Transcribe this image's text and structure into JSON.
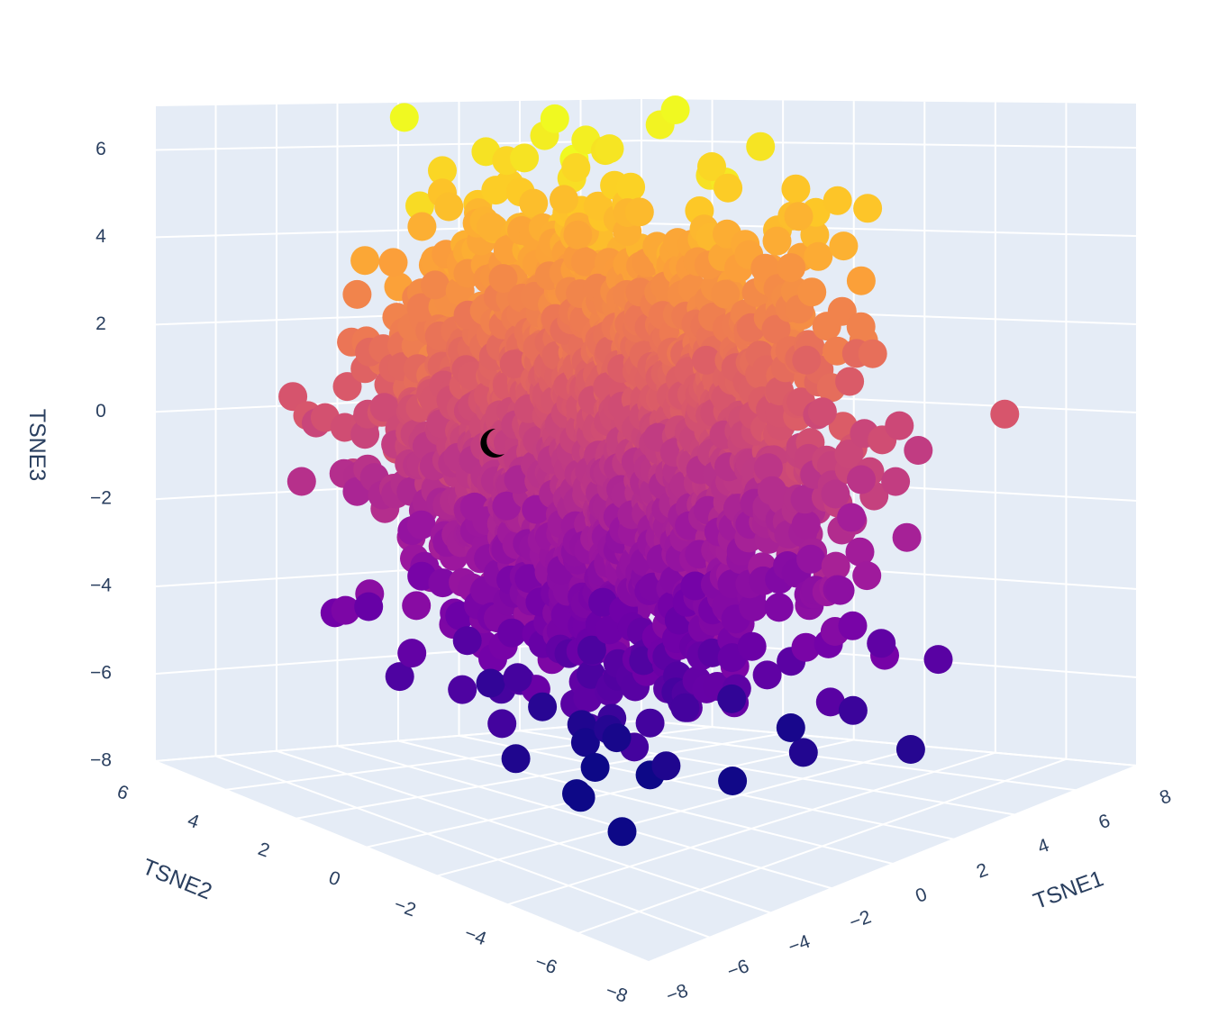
{
  "chart_data": {
    "type": "scatter3d",
    "title": "",
    "axes": {
      "x": {
        "label": "TSNE1",
        "range": [
          -8,
          8
        ],
        "ticks": [
          -8,
          -6,
          -4,
          -2,
          0,
          2,
          4,
          6,
          8
        ]
      },
      "y": {
        "label": "TSNE2",
        "range": [
          -8,
          6
        ],
        "ticks": [
          -8,
          -6,
          -4,
          -2,
          0,
          2,
          4,
          6
        ]
      },
      "z": {
        "label": "TSNE3",
        "range": [
          -8,
          7
        ],
        "ticks": [
          -8,
          -6,
          -4,
          -2,
          0,
          2,
          4,
          6
        ]
      }
    },
    "colorscale": "plasma",
    "color_by": "TSNE3",
    "colors": [
      "#0d0887",
      "#46039f",
      "#7201a8",
      "#9c179e",
      "#bd3786",
      "#d8576b",
      "#ed7953",
      "#fb9f3a",
      "#fdca26",
      "#f0f921"
    ],
    "background": "#e5ecf6",
    "grid_color": "#ffffff",
    "grid": true,
    "legend": "none",
    "marker": {
      "symbol": "circle",
      "opacity": 1.0
    },
    "distribution": {
      "shape": "dense roughly spherical cloud",
      "center": [
        0,
        0,
        0
      ],
      "spread": [
        3.5,
        3.5,
        3.2
      ],
      "x_extent": [
        -7,
        7
      ],
      "y_extent": [
        -7,
        5.5
      ],
      "z_extent": [
        -7.5,
        7
      ]
    },
    "sample_points": [
      [
        0.5,
        2.0,
        7.0
      ],
      [
        0.4,
        2.2,
        6.6
      ],
      [
        2.8,
        1.0,
        6.8
      ],
      [
        1.6,
        1.4,
        6.3
      ],
      [
        -1.8,
        3.2,
        5.8
      ],
      [
        -0.6,
        3.0,
        6.2
      ],
      [
        3.8,
        0.4,
        5.8
      ],
      [
        5.4,
        -0.6,
        5.2
      ],
      [
        6.0,
        -1.8,
        1.4
      ],
      [
        6.4,
        -3.2,
        -0.8
      ],
      [
        5.2,
        -4.8,
        -5.2
      ],
      [
        3.6,
        -5.4,
        -6.8
      ],
      [
        -4.8,
        4.6,
        -1.4
      ],
      [
        -3.0,
        1.6,
        -5.6
      ],
      [
        -1.8,
        -0.6,
        -7.6
      ],
      [
        -2.4,
        0.6,
        -7.0
      ],
      [
        1.0,
        -2.6,
        -7.4
      ],
      [
        2.4,
        -3.4,
        -6.9
      ],
      [
        4.6,
        -2.6,
        2.6
      ],
      [
        5.6,
        -2.0,
        -2.3
      ]
    ]
  },
  "cursor": {
    "icon": "moon-cursor-icon"
  }
}
